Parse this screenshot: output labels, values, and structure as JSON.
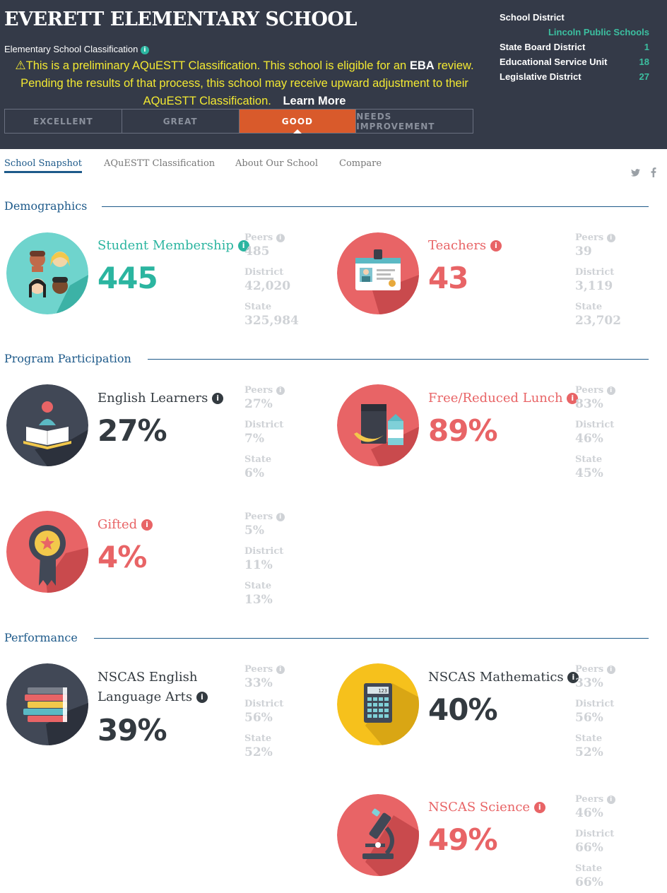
{
  "header": {
    "school_name": "EVERETT ELEMENTARY SCHOOL",
    "classification_label": "Elementary School Classification",
    "notice": {
      "part1": "This is a preliminary AQuESTT Classification. This school is eligible for an",
      "eba": "EBA",
      "part2": "review. Pending the results of that process, this school may receive upward adjustment to their AQuESTT Classification.",
      "learn_more": "Learn More"
    },
    "ratings": [
      "EXCELLENT",
      "GREAT",
      "GOOD",
      "NEEDS IMPROVEMENT"
    ],
    "active_rating": "GOOD",
    "district_panel": {
      "school_district_label": "School District",
      "school_district_value": "Lincoln Public Schools",
      "state_board_label": "State Board District",
      "state_board_value": "1",
      "esu_label": "Educational Service Unit",
      "esu_value": "18",
      "legislative_label": "Legislative District",
      "legislative_value": "27"
    }
  },
  "nav": {
    "tabs": [
      "School Snapshot",
      "AQuESTT Classification",
      "About Our School",
      "Compare"
    ],
    "active_tab": "School Snapshot",
    "social_icons": [
      "twitter-icon",
      "facebook-icon"
    ]
  },
  "labels": {
    "peers": "Peers",
    "district": "District",
    "state": "State"
  },
  "sections": {
    "demographics": "Demographics",
    "program": "Program Participation",
    "performance": "Performance"
  },
  "metrics": {
    "student_membership": {
      "label": "Student Membership",
      "value": "445",
      "peers": "485",
      "district": "42,020",
      "state": "325,984",
      "icon": "students-icon"
    },
    "teachers": {
      "label": "Teachers",
      "value": "43",
      "peers": "39",
      "district": "3,119",
      "state": "23,702",
      "icon": "id-badge-icon"
    },
    "english_learners": {
      "label": "English Learners",
      "value": "27%",
      "peers": "27%",
      "district": "7%",
      "state": "6%",
      "icon": "reader-book-icon"
    },
    "free_reduced_lunch": {
      "label": "Free/Reduced Lunch",
      "value": "89%",
      "peers": "83%",
      "district": "46%",
      "state": "45%",
      "icon": "lunch-icon"
    },
    "gifted": {
      "label": "Gifted",
      "value": "4%",
      "peers": "5%",
      "district": "11%",
      "state": "13%",
      "icon": "award-ribbon-icon"
    },
    "nscas_ela": {
      "label_line1": "NSCAS English",
      "label_line2": "Language Arts",
      "value": "39%",
      "peers": "33%",
      "district": "56%",
      "state": "52%",
      "icon": "books-icon"
    },
    "nscas_math": {
      "label": "NSCAS Mathematics",
      "value": "40%",
      "peers": "33%",
      "district": "56%",
      "state": "52%",
      "icon": "calculator-icon",
      "calculator_display": "123"
    },
    "nscas_science": {
      "label": "NSCAS Science",
      "value": "49%",
      "peers": "46%",
      "district": "66%",
      "state": "66%",
      "icon": "microscope-icon"
    }
  },
  "colors": {
    "header_bg": "#343a48",
    "teal": "#2bb5a0",
    "coral": "#e86466",
    "navy": "#1e5a8a",
    "rating_active": "#d95a2b",
    "notice_yellow": "#f3e932",
    "math_yellow": "#f6c11c"
  }
}
